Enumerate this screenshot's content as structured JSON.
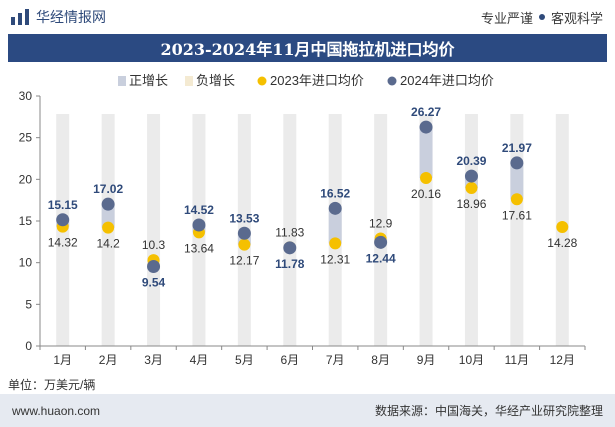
{
  "header": {
    "brand": "华经情报网",
    "tag1": "专业严谨",
    "tag2": "客观科学"
  },
  "footer": {
    "unit_label": "单位：万美元/辆",
    "site": "www.huaon.com",
    "source": "数据来源：中国海关，华经产业研究院整理"
  },
  "colors": {
    "title_bg": "#2b4a82",
    "pos_bar": "#c9cfdd",
    "neg_bar": "#f4ead2",
    "series_2023": "#f5c000",
    "series_2024": "#5a6a8e",
    "bg_column": "#ebebeb"
  },
  "chart_data": {
    "type": "line",
    "title": "2023-2024年11月中国拖拉机进口均价",
    "categories": [
      "1月",
      "2月",
      "3月",
      "4月",
      "5月",
      "6月",
      "7月",
      "8月",
      "9月",
      "10月",
      "11月",
      "12月"
    ],
    "series": [
      {
        "name": "2023年进口均价",
        "values": [
          14.32,
          14.2,
          10.3,
          13.64,
          12.17,
          11.83,
          12.31,
          12.9,
          20.16,
          18.96,
          17.61,
          14.28
        ]
      },
      {
        "name": "2024年进口均价",
        "values": [
          15.15,
          17.02,
          9.54,
          14.52,
          13.53,
          11.78,
          16.52,
          12.44,
          26.27,
          20.39,
          21.97,
          null
        ]
      }
    ],
    "legend": [
      "正增长",
      "负增长",
      "2023年进口均价",
      "2024年进口均价"
    ],
    "yticks": [
      0,
      5,
      10,
      15,
      20,
      25,
      30
    ],
    "ylim": [
      0,
      30
    ],
    "xlabel": "",
    "ylabel": ""
  }
}
